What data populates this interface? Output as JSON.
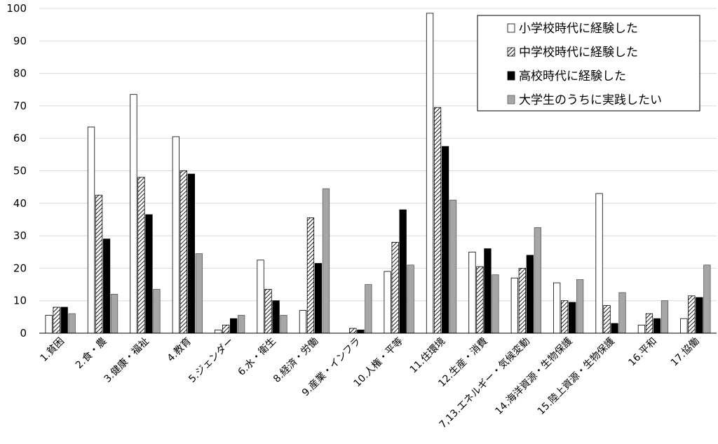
{
  "chart_data": {
    "type": "bar",
    "categories": [
      "1.貧困",
      "2.食・農",
      "3.健康・福祉",
      "4.教育",
      "5.ジェンダー",
      "6.水・衛生",
      "8.経済・労働",
      "9.産業・インフラ",
      "10.人権・平等",
      "11.住環境",
      "12.生産・消費",
      "7,13.エネルギー・気候変動",
      "14.海洋資源・生物保護",
      "15.陸上資源・生物保護",
      "16.平和",
      "17.協働"
    ],
    "series": [
      {
        "name": "小学校時代に経験した",
        "values": [
          5.5,
          63.5,
          73.5,
          60.5,
          1,
          22.5,
          7,
          0,
          19,
          98.5,
          25,
          17,
          15.5,
          43,
          2.5,
          4.5
        ]
      },
      {
        "name": "中学校時代に経験した",
        "values": [
          8,
          42.5,
          48,
          50,
          2.5,
          13.5,
          35.5,
          1.5,
          28,
          69.5,
          20.5,
          20,
          10,
          8.5,
          6,
          11.5
        ]
      },
      {
        "name": "高校時代に経験した",
        "values": [
          8,
          29,
          36.5,
          49,
          4.5,
          10,
          21.5,
          1,
          38,
          57.5,
          26,
          24,
          9.5,
          3,
          4.5,
          11
        ]
      },
      {
        "name": "大学生のうちに実践したい",
        "values": [
          6,
          12,
          13.5,
          24.5,
          5.5,
          5.5,
          44.5,
          15,
          21,
          41,
          18,
          32.5,
          16.5,
          12.5,
          10,
          21
        ]
      }
    ],
    "yticks": [
      "0",
      "10",
      "20",
      "30",
      "40",
      "50",
      "60",
      "70",
      "80",
      "90",
      "100"
    ],
    "ylim": [
      0,
      100
    ],
    "grid": true,
    "legend_position": "top-right"
  }
}
